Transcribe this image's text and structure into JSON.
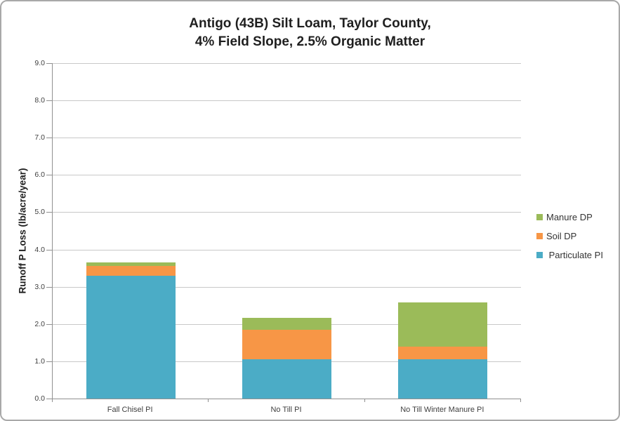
{
  "title": {
    "line1": "Antigo (43B) Silt Loam, Taylor County,",
    "line2": "4% Field Slope, 2.5% Organic Matter"
  },
  "chart_data": {
    "type": "bar",
    "stacked": true,
    "title": "Antigo (43B) Silt Loam, Taylor County, 4% Field Slope, 2.5% Organic Matter",
    "xlabel": "",
    "ylabel": "Runoff P Loss (lb/acre/year)",
    "ylim": [
      0,
      9
    ],
    "ytick_step": 1,
    "ytick_labels": [
      "0.0",
      "1.0",
      "2.0",
      "3.0",
      "4.0",
      "5.0",
      "6.0",
      "7.0",
      "8.0",
      "9.0"
    ],
    "grid": true,
    "legend_position": "right",
    "categories": [
      "Fall Chisel PI",
      "No Till PI",
      "No Till Winter Manure PI"
    ],
    "series": [
      {
        "name": "Particulate PI",
        "color": "#4BACC6",
        "values": [
          3.3,
          1.05,
          1.05
        ]
      },
      {
        "name": "Soil DP",
        "color": "#F79646",
        "values": [
          0.25,
          0.8,
          0.35
        ]
      },
      {
        "name": "Manure DP",
        "color": "#9BBB59",
        "values": [
          0.1,
          0.32,
          1.18
        ]
      }
    ],
    "legend_items": [
      {
        "label": "Manure DP",
        "color": "#9BBB59"
      },
      {
        "label": "Soil DP",
        "color": "#F79646"
      },
      {
        "label": " Particulate PI",
        "color": "#4BACC6"
      }
    ]
  },
  "colors": {
    "particulate_pi": "#4BACC6",
    "soil_dp": "#F79646",
    "manure_dp": "#9BBB59",
    "gridline": "#C8C8C8",
    "axis_line": "#909090",
    "chart_border": "#A9A9A9",
    "background": "#FFFFFF"
  }
}
